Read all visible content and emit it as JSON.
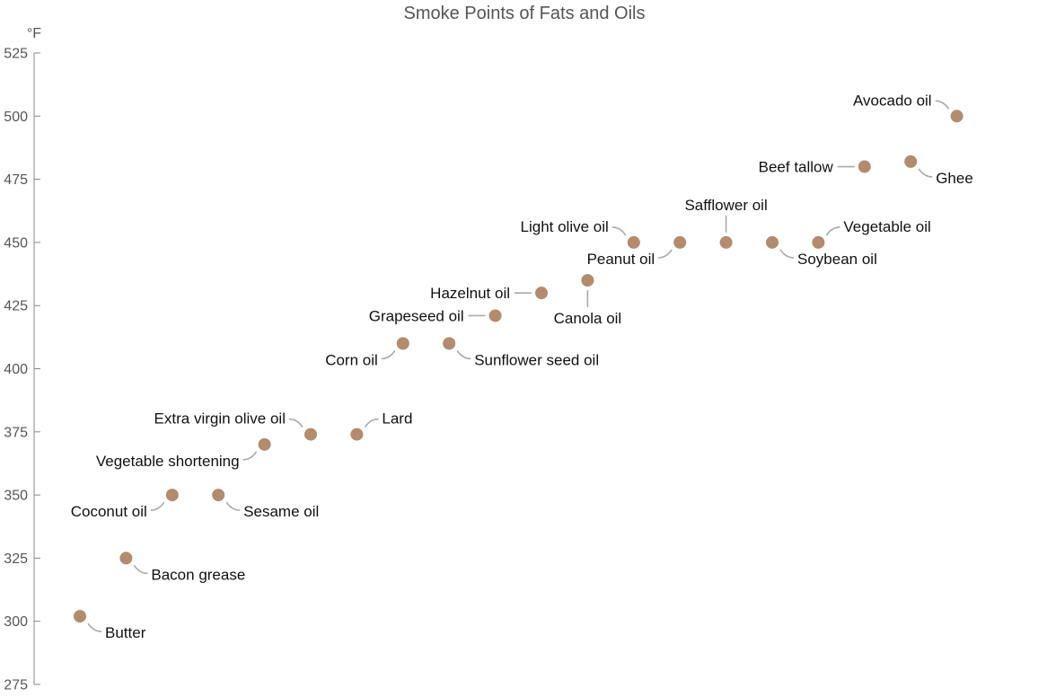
{
  "chart_data": {
    "type": "scatter",
    "title": "Smoke Points of Fats and Oils",
    "ylabel": "°F",
    "xlabel": "",
    "ylim": [
      275,
      525
    ],
    "yticks": [
      275,
      300,
      325,
      350,
      375,
      400,
      425,
      450,
      475,
      500,
      525
    ],
    "ytick_labels": [
      "275",
      "300",
      "325",
      "350",
      "375",
      "400",
      "425",
      "450",
      "475",
      "500",
      "525"
    ],
    "grid": false,
    "point_color": "#b38b6d",
    "points": [
      {
        "x": 1,
        "y": 302,
        "label": "Butter"
      },
      {
        "x": 2,
        "y": 325,
        "label": "Bacon grease"
      },
      {
        "x": 3,
        "y": 350,
        "label": "Coconut oil"
      },
      {
        "x": 4,
        "y": 350,
        "label": "Sesame oil"
      },
      {
        "x": 5,
        "y": 370,
        "label": "Vegetable shortening"
      },
      {
        "x": 6,
        "y": 374,
        "label": "Extra virgin olive oil"
      },
      {
        "x": 7,
        "y": 374,
        "label": "Lard"
      },
      {
        "x": 8,
        "y": 410,
        "label": "Corn oil"
      },
      {
        "x": 9,
        "y": 410,
        "label": "Sunflower seed oil"
      },
      {
        "x": 10,
        "y": 421,
        "label": "Grapeseed oil"
      },
      {
        "x": 11,
        "y": 430,
        "label": "Hazelnut oil"
      },
      {
        "x": 12,
        "y": 435,
        "label": "Canola oil"
      },
      {
        "x": 13,
        "y": 450,
        "label": "Light olive oil"
      },
      {
        "x": 14,
        "y": 450,
        "label": "Peanut oil"
      },
      {
        "x": 15,
        "y": 450,
        "label": "Safflower oil"
      },
      {
        "x": 16,
        "y": 450,
        "label": "Soybean oil"
      },
      {
        "x": 17,
        "y": 450,
        "label": "Vegetable oil"
      },
      {
        "x": 18,
        "y": 480,
        "label": "Beef tallow"
      },
      {
        "x": 19,
        "y": 482,
        "label": "Ghee"
      },
      {
        "x": 20,
        "y": 500,
        "label": "Avocado oil"
      }
    ]
  }
}
